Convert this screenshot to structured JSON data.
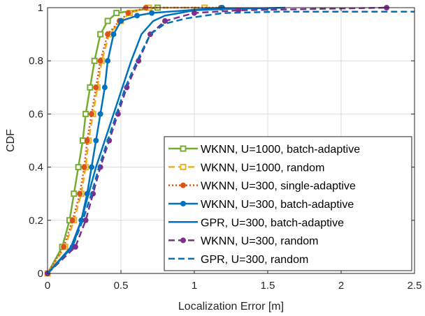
{
  "chart_data": {
    "type": "line",
    "xlabel": "Localization Error [m]",
    "ylabel": "CDF",
    "xlim": [
      0,
      2.5
    ],
    "ylim": [
      0,
      1
    ],
    "xticks": [
      "0",
      "0.5",
      "1",
      "1.5",
      "2",
      "2.5"
    ],
    "yticks": [
      "0",
      "0.2",
      "0.4",
      "0.6",
      "0.8",
      "1"
    ],
    "grid": true,
    "legend_position": "bottom-right",
    "series": [
      {
        "name": "WKNN, U=1000, batch-adaptive",
        "color": "#77ac30",
        "dash": "solid",
        "marker": "square",
        "x": [
          0,
          0.1,
          0.15,
          0.18,
          0.21,
          0.24,
          0.26,
          0.29,
          0.32,
          0.36,
          0.41,
          0.47,
          0.75
        ],
        "y": [
          0,
          0.1,
          0.2,
          0.3,
          0.4,
          0.5,
          0.6,
          0.7,
          0.8,
          0.9,
          0.95,
          0.98,
          1.0
        ]
      },
      {
        "name": "WKNN, U=1000, random",
        "color": "#edb120",
        "dash": "dash",
        "marker": "square",
        "x": [
          0,
          0.12,
          0.18,
          0.23,
          0.26,
          0.28,
          0.31,
          0.34,
          0.37,
          0.42,
          0.5,
          0.56,
          0.69,
          1.07
        ],
        "y": [
          0,
          0.1,
          0.2,
          0.3,
          0.4,
          0.5,
          0.6,
          0.7,
          0.8,
          0.9,
          0.95,
          0.98,
          1.0,
          1.0
        ]
      },
      {
        "name": "WKNN, U=300, single-adaptive",
        "color": "#d95319",
        "dash": "dot",
        "marker": "circle",
        "x": [
          0,
          0.11,
          0.17,
          0.22,
          0.25,
          0.27,
          0.3,
          0.33,
          0.36,
          0.41,
          0.49,
          0.55,
          0.67,
          1.18
        ],
        "y": [
          0,
          0.1,
          0.2,
          0.3,
          0.4,
          0.5,
          0.6,
          0.7,
          0.8,
          0.9,
          0.95,
          0.98,
          1.0,
          1.0
        ]
      },
      {
        "name": "WKNN, U=300, batch-adaptive",
        "color": "#0072bd",
        "dash": "solid",
        "marker": "circle",
        "x": [
          0,
          0.17,
          0.23,
          0.27,
          0.3,
          0.33,
          0.36,
          0.39,
          0.41,
          0.45,
          0.5,
          0.61,
          0.71,
          1.19
        ],
        "y": [
          0,
          0.1,
          0.2,
          0.3,
          0.4,
          0.5,
          0.6,
          0.7,
          0.8,
          0.9,
          0.95,
          0.97,
          0.98,
          1.0
        ]
      },
      {
        "name": "GPR, U=300, batch-adaptive",
        "color": "#0072bd",
        "dash": "solid",
        "marker": "none",
        "x": [
          0,
          0.16,
          0.23,
          0.28,
          0.33,
          0.39,
          0.45,
          0.51,
          0.57,
          0.64,
          0.72,
          0.8,
          0.9,
          1.0,
          1.2,
          1.62
        ],
        "y": [
          0,
          0.1,
          0.2,
          0.3,
          0.4,
          0.5,
          0.6,
          0.7,
          0.8,
          0.9,
          0.95,
          0.97,
          0.98,
          0.99,
          0.995,
          1.0
        ]
      },
      {
        "name": "WKNN, U=300, random",
        "color": "#7e2f8e",
        "dash": "dash",
        "marker": "circle",
        "x": [
          0,
          0.19,
          0.26,
          0.31,
          0.36,
          0.42,
          0.48,
          0.54,
          0.62,
          0.7,
          0.8,
          1.0,
          1.3,
          2.31
        ],
        "y": [
          0,
          0.1,
          0.2,
          0.3,
          0.4,
          0.5,
          0.6,
          0.7,
          0.8,
          0.9,
          0.95,
          0.98,
          0.99,
          1.0
        ]
      },
      {
        "name": "GPR, U=300, random",
        "color": "#0072bd",
        "dash": "dash",
        "marker": "none",
        "x": [
          0,
          0.17,
          0.24,
          0.3,
          0.35,
          0.41,
          0.47,
          0.53,
          0.61,
          0.7,
          0.8,
          0.95,
          1.2,
          1.6,
          2.5
        ],
        "y": [
          0,
          0.1,
          0.2,
          0.3,
          0.4,
          0.5,
          0.6,
          0.7,
          0.8,
          0.9,
          0.94,
          0.96,
          0.98,
          0.985,
          0.985
        ]
      }
    ]
  }
}
